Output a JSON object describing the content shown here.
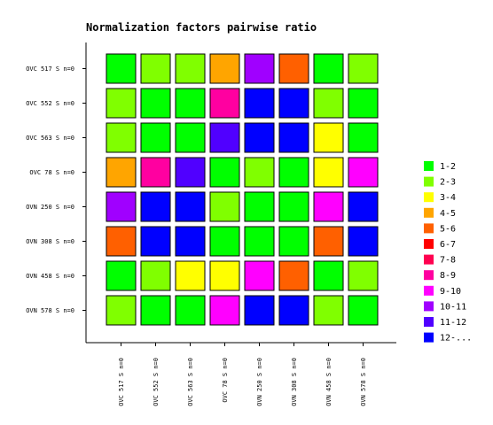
{
  "chart_data": {
    "type": "heatmap",
    "title": "Normalization factors pairwise ratio",
    "xlabel": "",
    "ylabel": "",
    "rows": [
      "OVC 517 S n=0",
      "OVC 552 S n=0",
      "OVC 563 S n=0",
      "OVC 78 S n=0",
      "OVN 250 S n=0",
      "OVN 308 S n=0",
      "OVN 458 S n=0",
      "OVN 578 S n=0"
    ],
    "columns": [
      "OVC 517 S n=0",
      "OVC 552 S n=0",
      "OVC 563 S n=0",
      "OVC 78 S n=0",
      "OVN 250 S n=0",
      "OVN 308 S n=0",
      "OVN 458 S n=0",
      "OVN 578 S n=0"
    ],
    "cells": [
      [
        "1-2",
        "2-3",
        "2-3",
        "4-5",
        "10-11",
        "5-6",
        "1-2",
        "2-3"
      ],
      [
        "2-3",
        "1-2",
        "1-2",
        "8-9",
        "12-...",
        "12-...",
        "2-3",
        "1-2"
      ],
      [
        "2-3",
        "1-2",
        "1-2",
        "11-12",
        "12-...",
        "12-...",
        "3-4",
        "1-2"
      ],
      [
        "4-5",
        "8-9",
        "11-12",
        "1-2",
        "2-3",
        "1-2",
        "3-4",
        "9-10"
      ],
      [
        "10-11",
        "12-...",
        "12-...",
        "2-3",
        "1-2",
        "1-2",
        "9-10",
        "12-..."
      ],
      [
        "5-6",
        "12-...",
        "12-...",
        "1-2",
        "1-2",
        "1-2",
        "5-6",
        "12-..."
      ],
      [
        "1-2",
        "2-3",
        "3-4",
        "3-4",
        "9-10",
        "5-6",
        "1-2",
        "2-3"
      ],
      [
        "2-3",
        "1-2",
        "1-2",
        "9-10",
        "12-...",
        "12-...",
        "2-3",
        "1-2"
      ]
    ],
    "legend_position": "right",
    "grid": false,
    "legend": [
      {
        "label": "1-2",
        "color": "#00ff00"
      },
      {
        "label": "2-3",
        "color": "#80ff00"
      },
      {
        "label": "3-4",
        "color": "#ffff00"
      },
      {
        "label": "4-5",
        "color": "#ffa500"
      },
      {
        "label": "5-6",
        "color": "#ff6000"
      },
      {
        "label": "6-7",
        "color": "#ff0000"
      },
      {
        "label": "7-8",
        "color": "#ff0050"
      },
      {
        "label": "8-9",
        "color": "#ff00a0"
      },
      {
        "label": "9-10",
        "color": "#ff00ff"
      },
      {
        "label": "10-11",
        "color": "#a000ff"
      },
      {
        "label": "11-12",
        "color": "#5000ff"
      },
      {
        "label": "12-...",
        "color": "#0000ff"
      }
    ]
  }
}
